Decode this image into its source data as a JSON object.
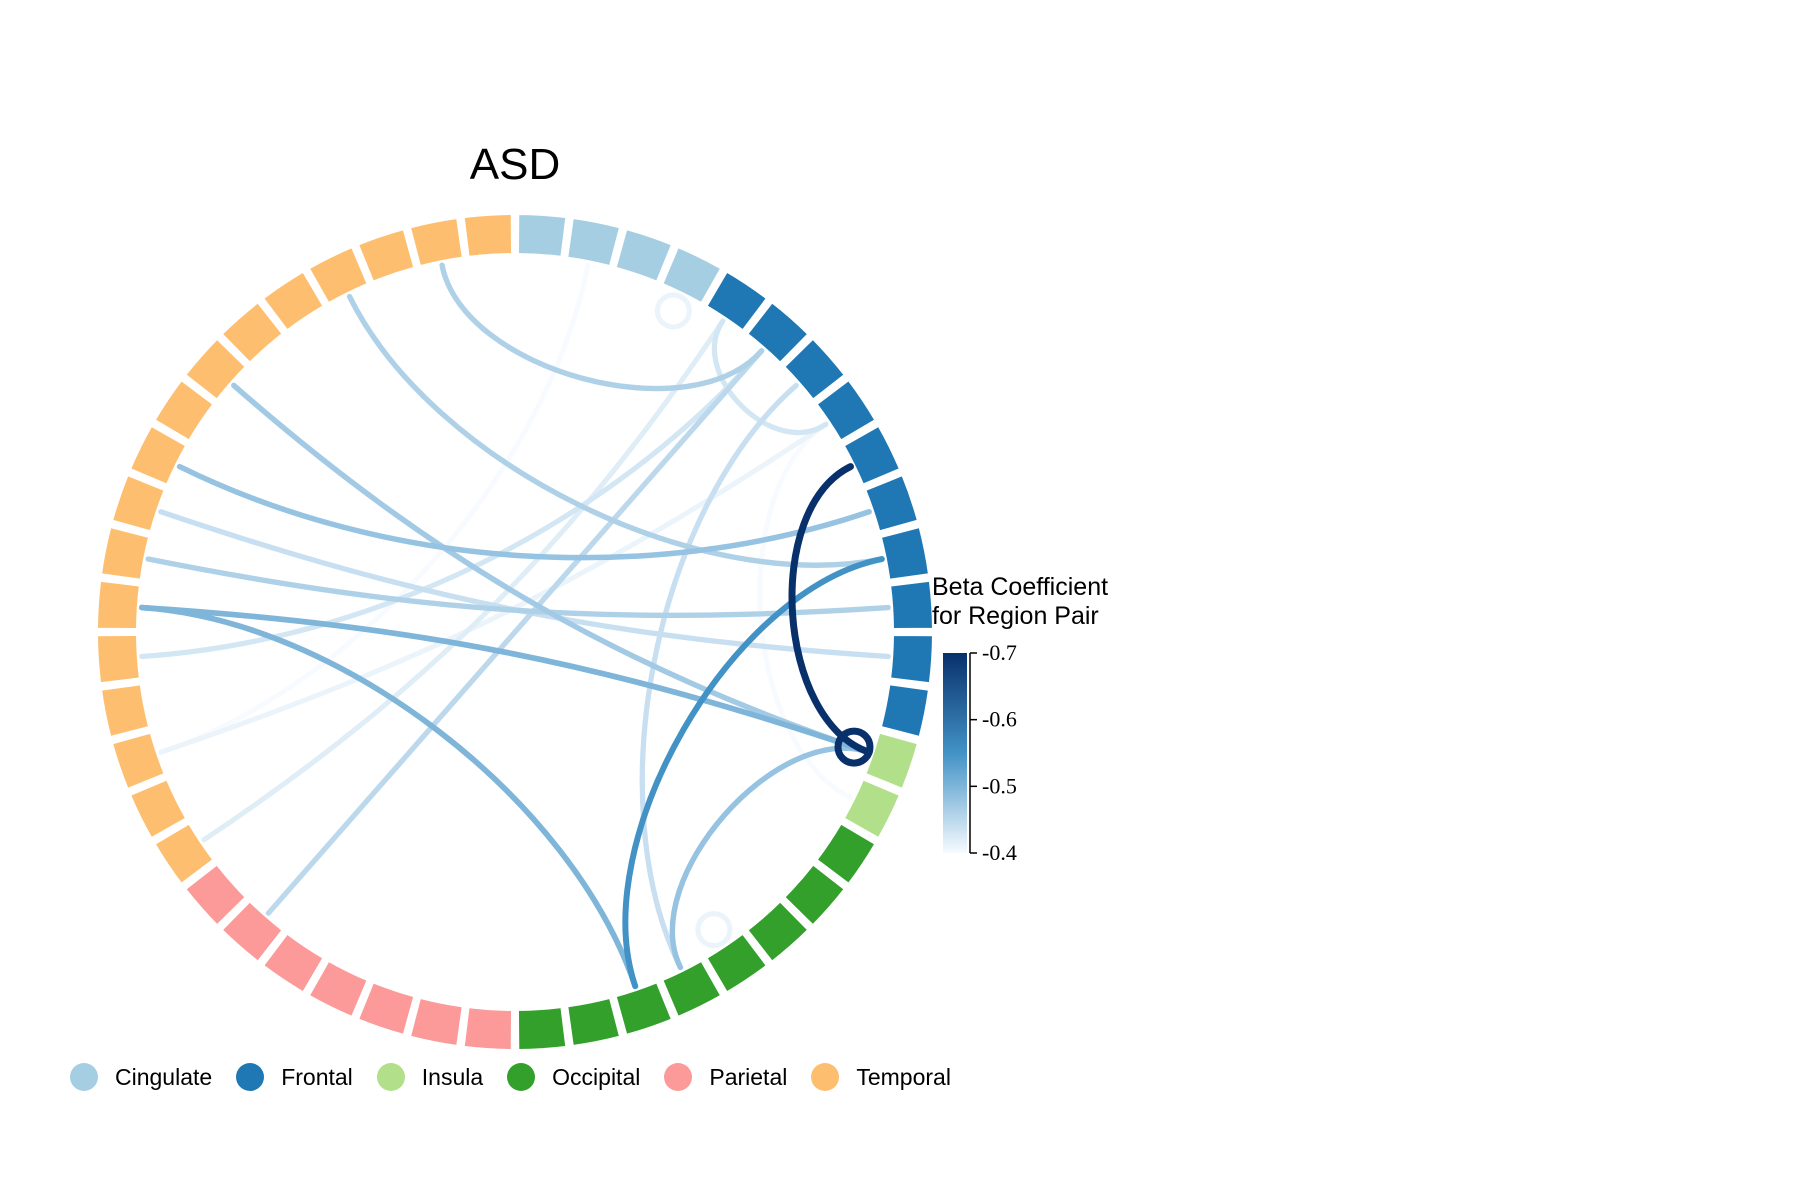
{
  "title": "ASD",
  "colorbar": {
    "title_line1": "Beta Coefficient",
    "title_line2": "for Region Pair",
    "min": -0.7,
    "max": -0.4,
    "ticks": [
      "-0.7",
      "-0.6",
      "-0.5",
      "-0.4"
    ],
    "color_dark": "#08306b",
    "color_light": "#f7fbff"
  },
  "legend": [
    {
      "label": "Cingulate",
      "color": "#a6cee3"
    },
    {
      "label": "Frontal",
      "color": "#1f78b4"
    },
    {
      "label": "Insula",
      "color": "#b2df8a"
    },
    {
      "label": "Occipital",
      "color": "#33a02c"
    },
    {
      "label": "Parietal",
      "color": "#fb9a99"
    },
    {
      "label": "Temporal",
      "color": "#fdbf6f"
    }
  ],
  "chart_data": {
    "type": "chord",
    "segment_order": [
      {
        "group": "Cingulate",
        "count": 4
      },
      {
        "group": "Frontal",
        "count": 10
      },
      {
        "group": "Insula",
        "count": 2
      },
      {
        "group": "Occipital",
        "count": 8
      },
      {
        "group": "Parietal",
        "count": 7
      },
      {
        "group": "Temporal",
        "count": 17
      }
    ],
    "links": [
      {
        "from": 56,
        "to": 14,
        "value": -0.7
      },
      {
        "from": 14,
        "to": 14,
        "value": -0.7
      },
      {
        "from": 10,
        "to": 21,
        "value": -0.55
      },
      {
        "from": 9,
        "to": 39,
        "value": -0.48
      },
      {
        "from": 11,
        "to": 37,
        "value": -0.46
      },
      {
        "from": 7,
        "to": 52,
        "value": -0.43
      },
      {
        "from": 15,
        "to": 55,
        "value": -0.4
      },
      {
        "from": 20,
        "to": 14,
        "value": -0.48
      },
      {
        "from": 36,
        "to": 14,
        "value": -0.5
      },
      {
        "from": 36,
        "to": 21,
        "value": -0.5
      },
      {
        "from": 41,
        "to": 14,
        "value": -0.47
      },
      {
        "from": 53,
        "to": 29,
        "value": -0.45
      },
      {
        "from": 44,
        "to": 10,
        "value": -0.46
      },
      {
        "from": 46,
        "to": 53,
        "value": -0.46
      },
      {
        "from": 54,
        "to": 20,
        "value": -0.44
      },
      {
        "from": 53,
        "to": 35,
        "value": -0.43
      },
      {
        "from": 52,
        "to": 31,
        "value": -0.42
      },
      {
        "from": 49,
        "to": 33,
        "value": -0.4
      },
      {
        "from": 55,
        "to": 33,
        "value": -0.41
      },
      {
        "from": 3,
        "to": 3,
        "value": -0.41
      },
      {
        "from": 19,
        "to": 19,
        "value": -0.41
      },
      {
        "from": 38,
        "to": 12,
        "value": -0.44
      }
    ]
  }
}
